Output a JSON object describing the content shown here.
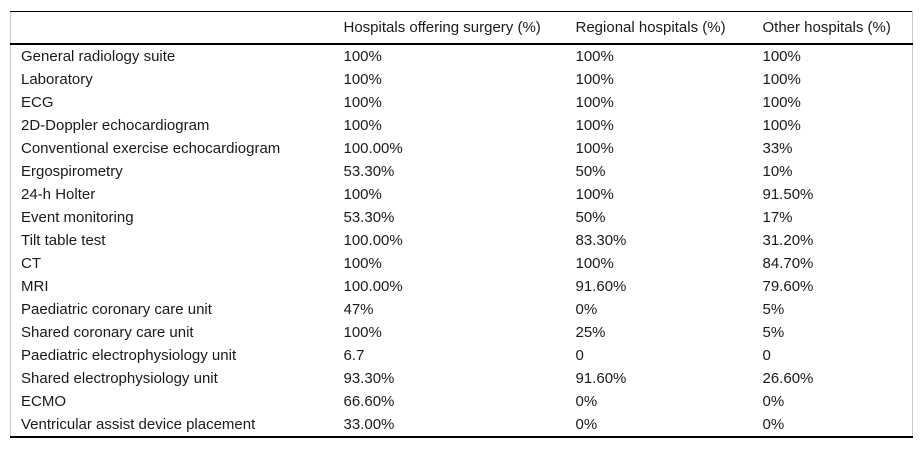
{
  "table": {
    "columns": [
      "",
      "Hospitals offering surgery (%)",
      "Regional hospitals (%)",
      "Other hospitals (%)"
    ],
    "rows": [
      {
        "label": "General radiology suite",
        "values": [
          "100%",
          "100%",
          "100%"
        ]
      },
      {
        "label": "Laboratory",
        "values": [
          "100%",
          "100%",
          "100%"
        ]
      },
      {
        "label": "ECG",
        "values": [
          "100%",
          "100%",
          "100%"
        ]
      },
      {
        "label": "2D-Doppler echocardiogram",
        "values": [
          "100%",
          "100%",
          "100%"
        ]
      },
      {
        "label": "Conventional exercise echocardiogram",
        "values": [
          "100.00%",
          "100%",
          "33%"
        ]
      },
      {
        "label": "Ergospirometry",
        "values": [
          "53.30%",
          "50%",
          "10%"
        ]
      },
      {
        "label": "24-h Holter",
        "values": [
          "100%",
          "100%",
          "91.50%"
        ]
      },
      {
        "label": "Event monitoring",
        "values": [
          "53.30%",
          "50%",
          "17%"
        ]
      },
      {
        "label": "Tilt table test",
        "values": [
          "100.00%",
          "83.30%",
          "31.20%"
        ]
      },
      {
        "label": "CT",
        "values": [
          "100%",
          "100%",
          "84.70%"
        ]
      },
      {
        "label": "MRI",
        "values": [
          "100.00%",
          "91.60%",
          "79.60%"
        ]
      },
      {
        "label": "Paediatric coronary care unit",
        "values": [
          "47%",
          "0%",
          "5%"
        ]
      },
      {
        "label": "Shared coronary care unit",
        "values": [
          "100%",
          "25%",
          "5%"
        ]
      },
      {
        "label": "Paediatric electrophysiology unit",
        "values": [
          "6.7",
          "0",
          "0"
        ]
      },
      {
        "label": "Shared electrophysiology unit",
        "values": [
          "93.30%",
          "91.60%",
          "26.60%"
        ]
      },
      {
        "label": "ECMO",
        "values": [
          "66.60%",
          "0%",
          "0%"
        ]
      },
      {
        "label": "Ventricular assist device placement",
        "values": [
          "33.00%",
          "0%",
          "0%"
        ]
      }
    ],
    "colors": {
      "text": "#1a1a1a",
      "rule_heavy": "#000000",
      "rule_light": "#c9c9c9",
      "background": "#ffffff"
    }
  }
}
